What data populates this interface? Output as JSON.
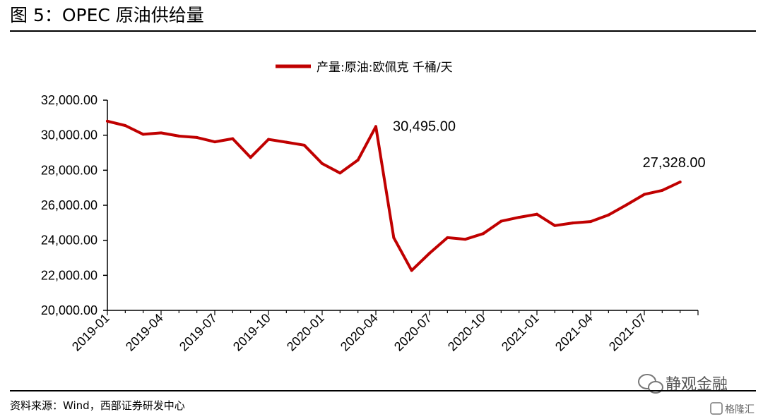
{
  "header": {
    "title": "图 5：OPEC 原油供给量"
  },
  "footer": {
    "source": "资料来源：Wind，西部证券研发中心"
  },
  "watermark": {
    "primary": "静观金融",
    "secondary": "格隆汇",
    "icon": "wechat-icon"
  },
  "colors": {
    "series": "#c00000",
    "axis": "#000000"
  },
  "chart_data": {
    "type": "line",
    "legend": {
      "label": "产量:原油:欧佩克 千桶/天",
      "placement": "top"
    },
    "x_tick_labels": [
      "2019-01",
      "2019-04",
      "2019-07",
      "2019-10",
      "2020-01",
      "2020-04",
      "2020-07",
      "2020-10",
      "2021-01",
      "2021-04",
      "2021-07"
    ],
    "y_tick_labels": [
      "20,000.00",
      "22,000.00",
      "24,000.00",
      "26,000.00",
      "28,000.00",
      "30,000.00",
      "32,000.00"
    ],
    "ylim": [
      20000,
      32000
    ],
    "y_ticks": [
      20000,
      22000,
      24000,
      26000,
      28000,
      30000,
      32000
    ],
    "grid": false,
    "series": [
      {
        "name": "产量:原油:欧佩克 千桶/天",
        "x": [
          "2019-01",
          "2019-02",
          "2019-03",
          "2019-04",
          "2019-05",
          "2019-06",
          "2019-07",
          "2019-08",
          "2019-09",
          "2019-10",
          "2019-11",
          "2019-12",
          "2020-01",
          "2020-02",
          "2020-03",
          "2020-04",
          "2020-05",
          "2020-06",
          "2020-07",
          "2020-08",
          "2020-09",
          "2020-10",
          "2020-11",
          "2020-12",
          "2021-01",
          "2021-02",
          "2021-03",
          "2021-04",
          "2021-05",
          "2021-06",
          "2021-07",
          "2021-08",
          "2021-09"
        ],
        "values": [
          30800,
          30550,
          30050,
          30130,
          29950,
          29870,
          29620,
          29800,
          28730,
          29760,
          29600,
          29430,
          28380,
          27840,
          28580,
          30495,
          24150,
          22280,
          23260,
          24150,
          24060,
          24380,
          25090,
          25310,
          25490,
          24840,
          24990,
          25070,
          25450,
          26020,
          26620,
          26850,
          27328
        ]
      }
    ],
    "annotations": [
      {
        "text": "30,495.00",
        "x": "2020-04",
        "y": 30495
      },
      {
        "text": "27,328.00",
        "x": "2021-09",
        "y": 27328
      }
    ]
  }
}
